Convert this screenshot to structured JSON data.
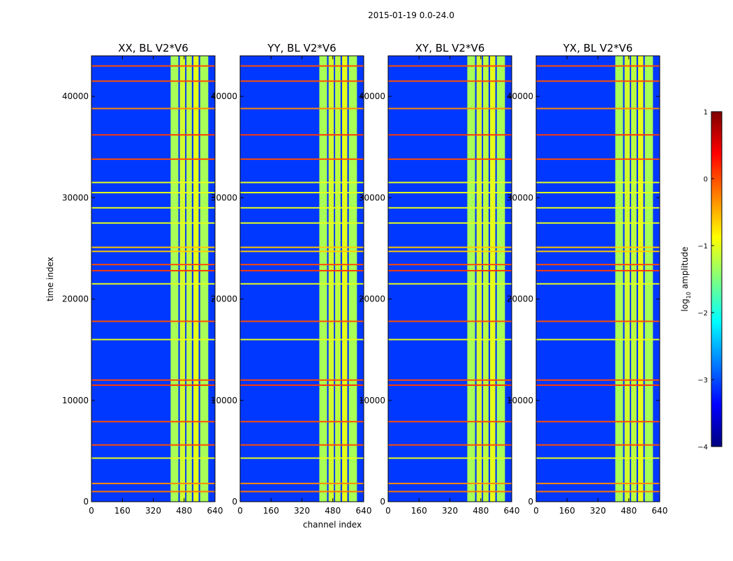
{
  "chart_data": {
    "type": "heatmap",
    "suptitle": "2015-01-19 0.0-24.0",
    "xlabel": "channel index",
    "ylabel": "time index",
    "xlim": [
      0,
      640
    ],
    "ylim": [
      0,
      44000
    ],
    "xticks": [
      0,
      160,
      320,
      480,
      640
    ],
    "yticks": [
      0,
      10000,
      20000,
      30000,
      40000
    ],
    "grid": false,
    "colormap": "jet",
    "colorbar": {
      "label": "log10 amplitude",
      "label_main": "log",
      "label_sub": "10",
      "label_rest": " amplitude",
      "range": [
        -4,
        1
      ],
      "ticks": [
        1,
        0,
        -1,
        -2,
        -3,
        -4
      ],
      "tick_labels": [
        "1",
        "0",
        "−1",
        "−2",
        "−3",
        "−4"
      ],
      "colors": [
        "#00007f",
        "#0000ff",
        "#007fff",
        "#00ffff",
        "#7fff7f",
        "#ffff00",
        "#ff7f00",
        "#ff0000",
        "#7f0000"
      ]
    },
    "panels": [
      {
        "title": "XX, BL V2*V6",
        "pol": "XX"
      },
      {
        "title": "YY, BL V2*V6",
        "pol": "YY"
      },
      {
        "title": "XY, BL V2*V6",
        "pol": "XY"
      },
      {
        "title": "YX, BL V2*V6",
        "pol": "YX"
      }
    ],
    "background_level": -3.1,
    "signal_band_channels": [
      410,
      605
    ],
    "signal_columns": [
      {
        "range": [
          410,
          450
        ],
        "level": -1.3
      },
      {
        "range": [
          458,
          485
        ],
        "level": -1.1
      },
      {
        "range": [
          492,
          520
        ],
        "level": -1.2
      },
      {
        "range": [
          528,
          555
        ],
        "level": -1.0
      },
      {
        "range": [
          563,
          605
        ],
        "level": -1.3
      }
    ],
    "flagged_rows": [
      {
        "time": 1000,
        "level": -0.2
      },
      {
        "time": 1800,
        "level": -0.3
      },
      {
        "time": 4300,
        "level": -1.0
      },
      {
        "time": 5600,
        "level": 0.0
      },
      {
        "time": 7900,
        "level": 0.0
      },
      {
        "time": 11500,
        "level": 0.1
      },
      {
        "time": 12000,
        "level": 0.0
      },
      {
        "time": 16000,
        "level": -1.0
      },
      {
        "time": 17800,
        "level": 0.0
      },
      {
        "time": 21500,
        "level": -1.0
      },
      {
        "time": 22800,
        "level": 0.1
      },
      {
        "time": 23400,
        "level": 0.0
      },
      {
        "time": 24700,
        "level": -0.6
      },
      {
        "time": 25100,
        "level": -0.6
      },
      {
        "time": 27500,
        "level": -1.0
      },
      {
        "time": 29000,
        "level": -1.0
      },
      {
        "time": 30500,
        "level": -1.0
      },
      {
        "time": 31500,
        "level": -1.0
      },
      {
        "time": 33800,
        "level": 0.0
      },
      {
        "time": 36200,
        "level": 0.1
      },
      {
        "time": 38800,
        "level": -0.3
      },
      {
        "time": 41500,
        "level": 0.0
      },
      {
        "time": 43000,
        "level": 0.0
      }
    ]
  }
}
